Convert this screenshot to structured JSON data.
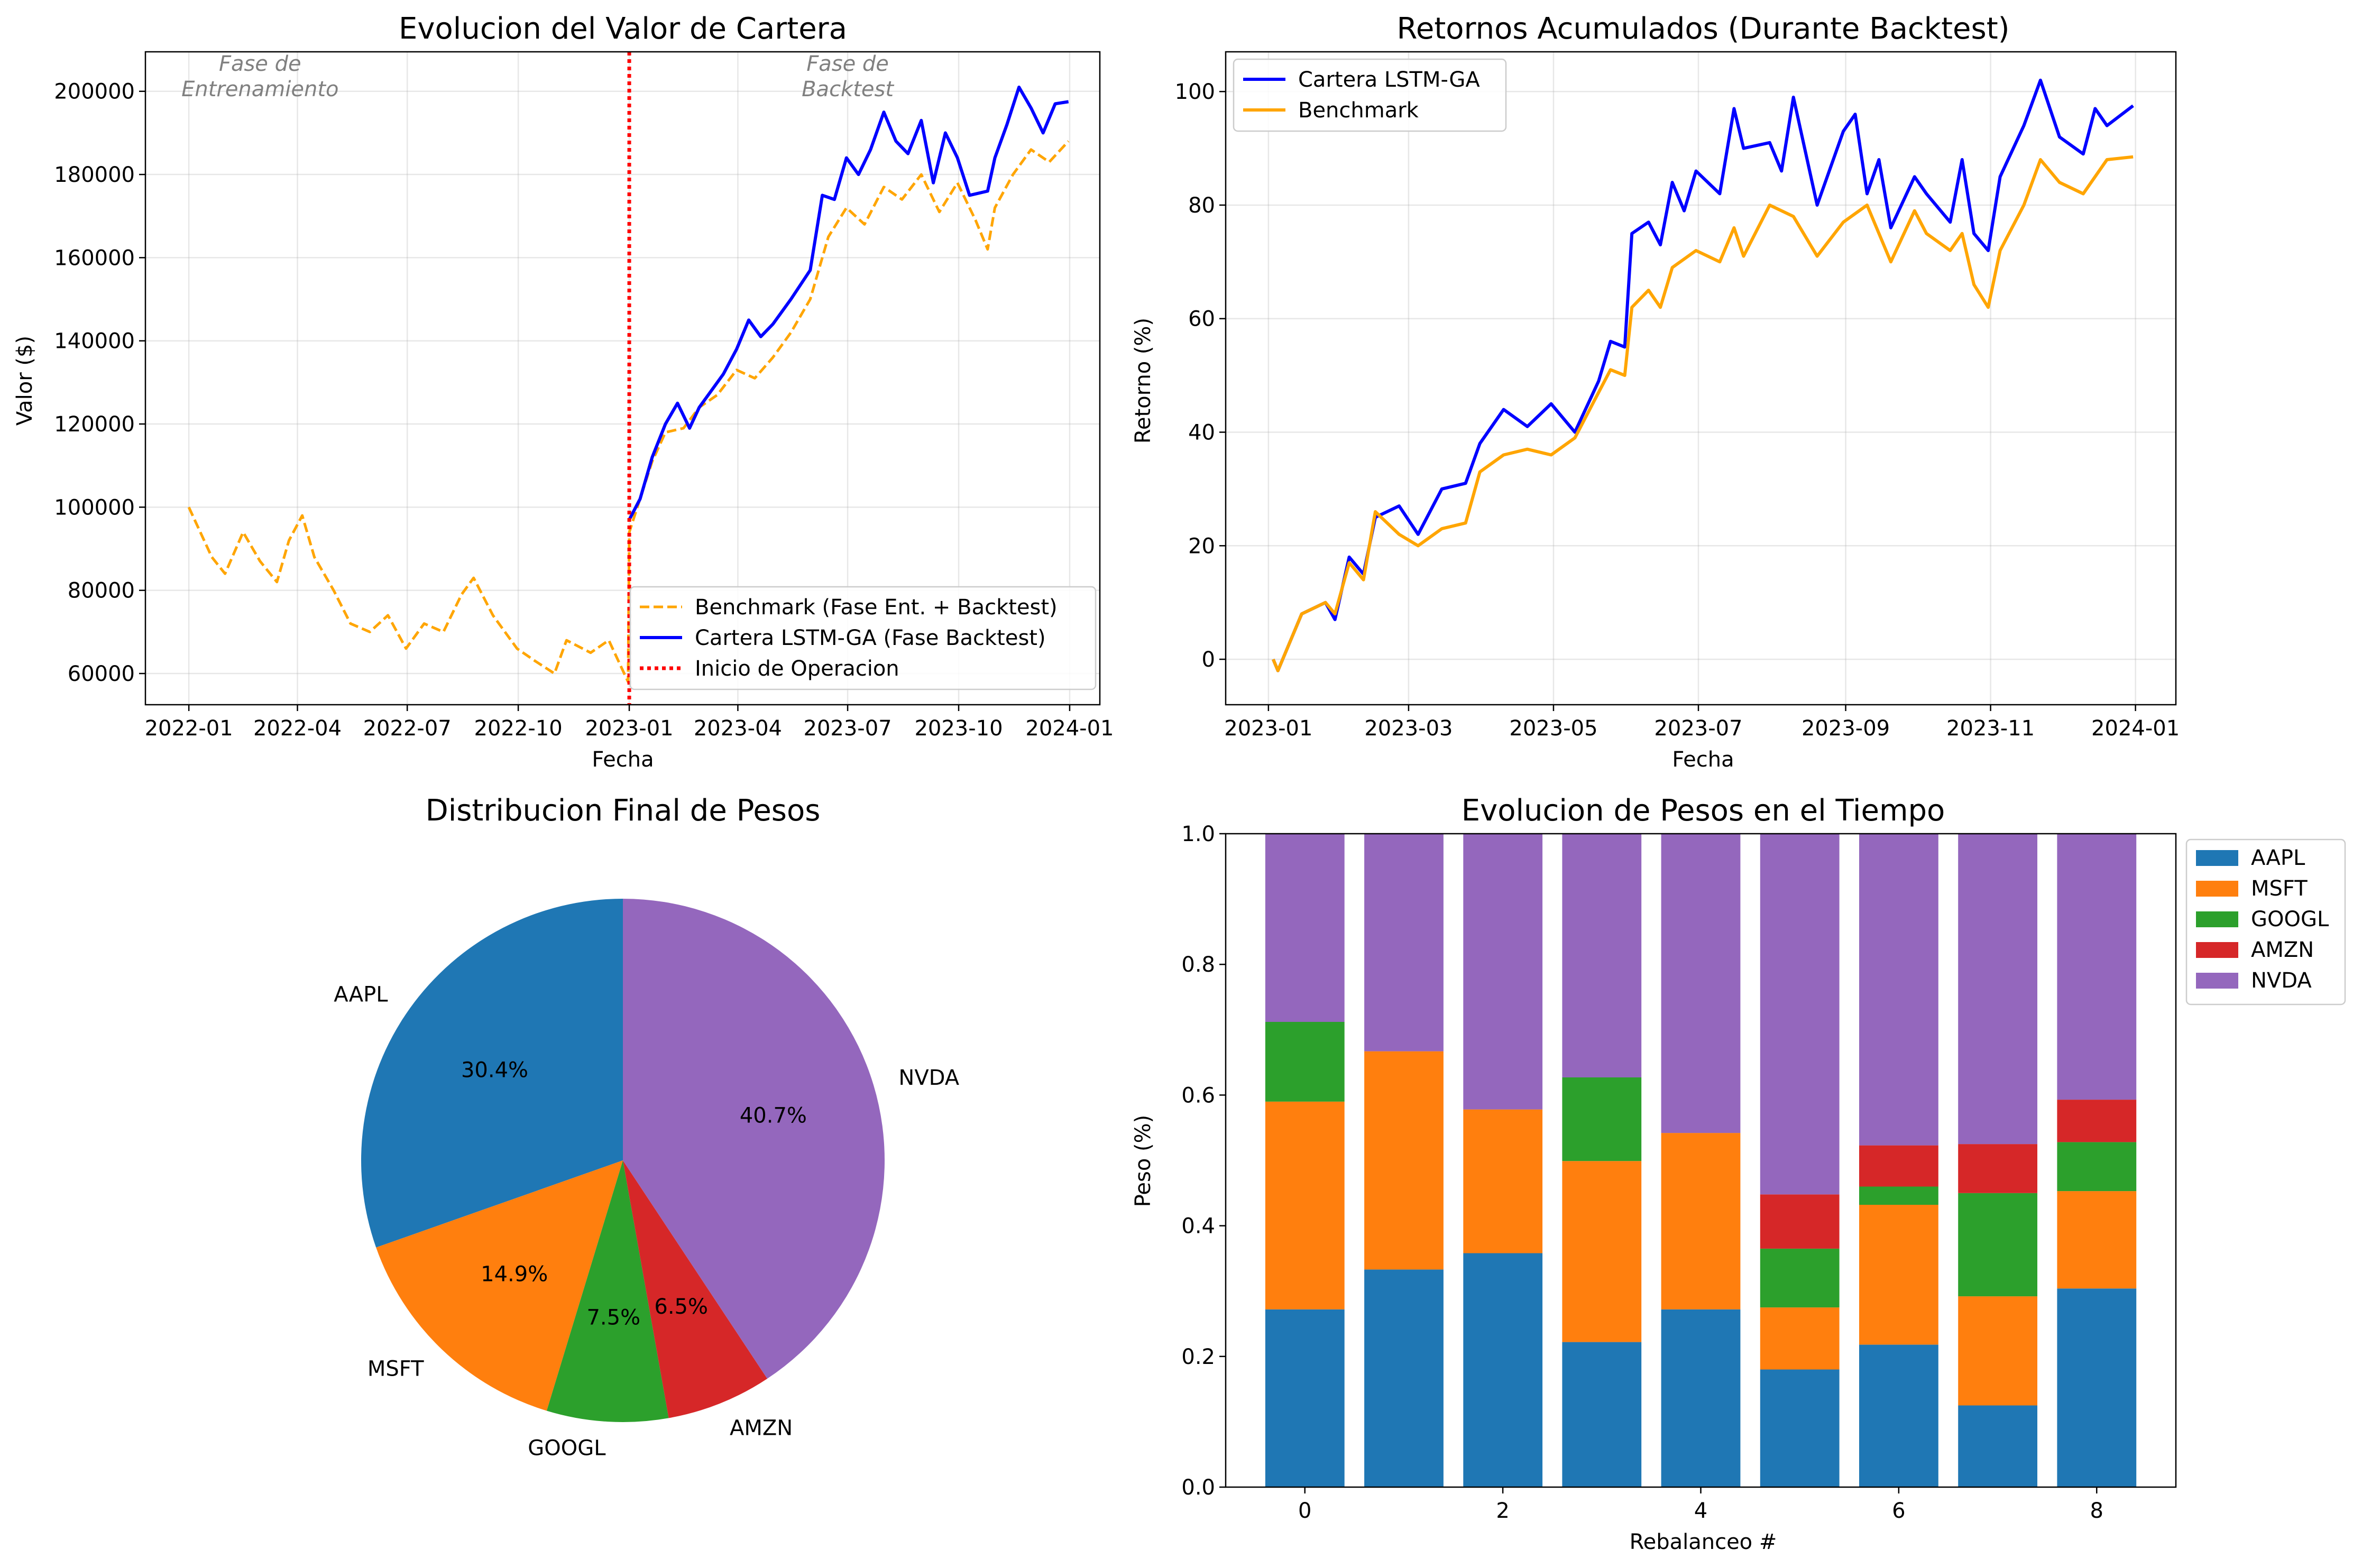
{
  "chart_data": [
    {
      "type": "line",
      "title": "Evolucion del Valor de Cartera",
      "xlabel": "Fecha",
      "ylabel": "Valor ($)",
      "xlim": [
        "2021-11-26",
        "2024-01-26"
      ],
      "ylim": [
        52500,
        209500
      ],
      "xticks": [
        "2022-01",
        "2022-04",
        "2022-07",
        "2022-10",
        "2023-01",
        "2023-04",
        "2023-07",
        "2023-10",
        "2024-01"
      ],
      "yticks": [
        60000,
        80000,
        100000,
        120000,
        140000,
        160000,
        180000,
        200000
      ],
      "grid": true,
      "legend": "bottom-right",
      "annotations": [
        {
          "text": "Fase de\nEntrenamiento",
          "x": "2022-03-01",
          "y": 200000
        },
        {
          "text": "Fase de\nBacktest",
          "x": "2023-07-01",
          "y": 200000
        }
      ],
      "vline": {
        "name": "Inicio de Operacion",
        "x": "2023-01-01",
        "color": "#ff0000",
        "style": "dotted"
      },
      "series": [
        {
          "name": "Benchmark (Fase Ent. + Backtest)",
          "color": "#ffa500",
          "style": "dashed",
          "points": [
            [
              "2022-01-01",
              100000
            ],
            [
              "2022-01-20",
              88000
            ],
            [
              "2022-01-31",
              84000
            ],
            [
              "2022-02-15",
              94000
            ],
            [
              "2022-03-01",
              87000
            ],
            [
              "2022-03-15",
              82000
            ],
            [
              "2022-03-25",
              92000
            ],
            [
              "2022-04-05",
              98000
            ],
            [
              "2022-04-15",
              88000
            ],
            [
              "2022-05-01",
              80000
            ],
            [
              "2022-05-15",
              72000
            ],
            [
              "2022-05-31",
              70000
            ],
            [
              "2022-06-15",
              74000
            ],
            [
              "2022-06-30",
              66000
            ],
            [
              "2022-07-15",
              72000
            ],
            [
              "2022-07-31",
              70000
            ],
            [
              "2022-08-15",
              79000
            ],
            [
              "2022-08-25",
              83000
            ],
            [
              "2022-09-10",
              74000
            ],
            [
              "2022-09-30",
              66000
            ],
            [
              "2022-10-15",
              63000
            ],
            [
              "2022-10-31",
              60000
            ],
            [
              "2022-11-10",
              68000
            ],
            [
              "2022-11-30",
              65000
            ],
            [
              "2022-12-15",
              68000
            ],
            [
              "2022-12-31",
              58000
            ],
            [
              "2023-01-01",
              94000
            ],
            [
              "2023-01-20",
              111000
            ],
            [
              "2023-01-31",
              118000
            ],
            [
              "2023-02-15",
              119000
            ],
            [
              "2023-02-28",
              124000
            ],
            [
              "2023-03-15",
              127000
            ],
            [
              "2023-03-31",
              133000
            ],
            [
              "2023-04-15",
              131000
            ],
            [
              "2023-04-30",
              136000
            ],
            [
              "2023-05-15",
              142000
            ],
            [
              "2023-05-31",
              150000
            ],
            [
              "2023-06-15",
              165000
            ],
            [
              "2023-06-30",
              172000
            ],
            [
              "2023-07-15",
              168000
            ],
            [
              "2023-07-31",
              177000
            ],
            [
              "2023-08-15",
              174000
            ],
            [
              "2023-08-31",
              180000
            ],
            [
              "2023-09-15",
              171000
            ],
            [
              "2023-09-30",
              178000
            ],
            [
              "2023-10-15",
              169000
            ],
            [
              "2023-10-25",
              162000
            ],
            [
              "2023-10-31",
              172000
            ],
            [
              "2023-11-15",
              180000
            ],
            [
              "2023-11-30",
              186000
            ],
            [
              "2023-12-15",
              183000
            ],
            [
              "2023-12-31",
              188000
            ]
          ]
        },
        {
          "name": "Cartera LSTM-GA (Fase Backtest)",
          "color": "#0000ff",
          "style": "solid",
          "points": [
            [
              "2023-01-01",
              97000
            ],
            [
              "2023-01-10",
              102000
            ],
            [
              "2023-01-20",
              112000
            ],
            [
              "2023-01-31",
              120000
            ],
            [
              "2023-02-10",
              125000
            ],
            [
              "2023-02-20",
              119000
            ],
            [
              "2023-02-28",
              124000
            ],
            [
              "2023-03-10",
              128000
            ],
            [
              "2023-03-20",
              132000
            ],
            [
              "2023-03-31",
              138000
            ],
            [
              "2023-04-10",
              145000
            ],
            [
              "2023-04-20",
              141000
            ],
            [
              "2023-04-30",
              144000
            ],
            [
              "2023-05-15",
              150000
            ],
            [
              "2023-05-31",
              157000
            ],
            [
              "2023-06-10",
              175000
            ],
            [
              "2023-06-20",
              174000
            ],
            [
              "2023-06-30",
              184000
            ],
            [
              "2023-07-10",
              180000
            ],
            [
              "2023-07-20",
              186000
            ],
            [
              "2023-07-31",
              195000
            ],
            [
              "2023-08-10",
              188000
            ],
            [
              "2023-08-20",
              185000
            ],
            [
              "2023-08-31",
              193000
            ],
            [
              "2023-09-10",
              178000
            ],
            [
              "2023-09-20",
              190000
            ],
            [
              "2023-09-30",
              184000
            ],
            [
              "2023-10-10",
              175000
            ],
            [
              "2023-10-25",
              176000
            ],
            [
              "2023-10-31",
              184000
            ],
            [
              "2023-11-10",
              192000
            ],
            [
              "2023-11-20",
              201000
            ],
            [
              "2023-11-30",
              196000
            ],
            [
              "2023-12-10",
              190000
            ],
            [
              "2023-12-20",
              197000
            ],
            [
              "2023-12-31",
              197500
            ]
          ]
        }
      ]
    },
    {
      "type": "line",
      "title": "Retornos Acumulados (Durante Backtest)",
      "xlabel": "Fecha",
      "ylabel": "Retorno (%)",
      "xlim": [
        "2022-12-14",
        "2024-01-18"
      ],
      "ylim": [
        -8,
        107
      ],
      "xticks": [
        "2023-01",
        "2023-03",
        "2023-05",
        "2023-07",
        "2023-09",
        "2023-11",
        "2024-01"
      ],
      "yticks": [
        0,
        20,
        40,
        60,
        80,
        100
      ],
      "grid": true,
      "legend": "top-left",
      "series": [
        {
          "name": "Cartera LSTM-GA",
          "color": "#0000ff",
          "points": [
            [
              "2023-01-03",
              0
            ],
            [
              "2023-01-05",
              -2
            ],
            [
              "2023-01-10",
              3
            ],
            [
              "2023-01-15",
              8
            ],
            [
              "2023-01-25",
              10
            ],
            [
              "2023-01-29",
              7
            ],
            [
              "2023-02-04",
              18
            ],
            [
              "2023-02-10",
              15
            ],
            [
              "2023-02-15",
              25
            ],
            [
              "2023-02-25",
              27
            ],
            [
              "2023-03-05",
              22
            ],
            [
              "2023-03-15",
              30
            ],
            [
              "2023-03-25",
              31
            ],
            [
              "2023-03-31",
              38
            ],
            [
              "2023-04-10",
              44
            ],
            [
              "2023-04-20",
              41
            ],
            [
              "2023-04-30",
              45
            ],
            [
              "2023-05-10",
              40
            ],
            [
              "2023-05-20",
              49
            ],
            [
              "2023-05-25",
              56
            ],
            [
              "2023-05-31",
              55
            ],
            [
              "2023-06-03",
              75
            ],
            [
              "2023-06-10",
              77
            ],
            [
              "2023-06-15",
              73
            ],
            [
              "2023-06-20",
              84
            ],
            [
              "2023-06-25",
              79
            ],
            [
              "2023-06-30",
              86
            ],
            [
              "2023-07-10",
              82
            ],
            [
              "2023-07-16",
              97
            ],
            [
              "2023-07-20",
              90
            ],
            [
              "2023-07-31",
              91
            ],
            [
              "2023-08-05",
              86
            ],
            [
              "2023-08-10",
              99
            ],
            [
              "2023-08-20",
              80
            ],
            [
              "2023-08-31",
              93
            ],
            [
              "2023-09-05",
              96
            ],
            [
              "2023-09-10",
              82
            ],
            [
              "2023-09-15",
              88
            ],
            [
              "2023-09-20",
              76
            ],
            [
              "2023-09-30",
              85
            ],
            [
              "2023-10-05",
              82
            ],
            [
              "2023-10-15",
              77
            ],
            [
              "2023-10-20",
              88
            ],
            [
              "2023-10-25",
              75
            ],
            [
              "2023-10-31",
              72
            ],
            [
              "2023-11-05",
              85
            ],
            [
              "2023-11-15",
              94
            ],
            [
              "2023-11-22",
              102
            ],
            [
              "2023-11-30",
              92
            ],
            [
              "2023-12-10",
              89
            ],
            [
              "2023-12-15",
              97
            ],
            [
              "2023-12-20",
              94
            ],
            [
              "2023-12-31",
              97.5
            ]
          ]
        },
        {
          "name": "Benchmark",
          "color": "#ffa500",
          "points": [
            [
              "2023-01-03",
              0
            ],
            [
              "2023-01-05",
              -2
            ],
            [
              "2023-01-10",
              3
            ],
            [
              "2023-01-15",
              8
            ],
            [
              "2023-01-25",
              10
            ],
            [
              "2023-01-29",
              8
            ],
            [
              "2023-02-04",
              17
            ],
            [
              "2023-02-10",
              14
            ],
            [
              "2023-02-15",
              26
            ],
            [
              "2023-02-25",
              22
            ],
            [
              "2023-03-05",
              20
            ],
            [
              "2023-03-15",
              23
            ],
            [
              "2023-03-25",
              24
            ],
            [
              "2023-03-31",
              33
            ],
            [
              "2023-04-10",
              36
            ],
            [
              "2023-04-20",
              37
            ],
            [
              "2023-04-30",
              36
            ],
            [
              "2023-05-10",
              39
            ],
            [
              "2023-05-20",
              47
            ],
            [
              "2023-05-25",
              51
            ],
            [
              "2023-05-31",
              50
            ],
            [
              "2023-06-03",
              62
            ],
            [
              "2023-06-10",
              65
            ],
            [
              "2023-06-15",
              62
            ],
            [
              "2023-06-20",
              69
            ],
            [
              "2023-06-30",
              72
            ],
            [
              "2023-07-10",
              70
            ],
            [
              "2023-07-16",
              76
            ],
            [
              "2023-07-20",
              71
            ],
            [
              "2023-07-31",
              80
            ],
            [
              "2023-08-10",
              78
            ],
            [
              "2023-08-20",
              71
            ],
            [
              "2023-08-31",
              77
            ],
            [
              "2023-09-10",
              80
            ],
            [
              "2023-09-20",
              70
            ],
            [
              "2023-09-30",
              79
            ],
            [
              "2023-10-05",
              75
            ],
            [
              "2023-10-15",
              72
            ],
            [
              "2023-10-20",
              75
            ],
            [
              "2023-10-25",
              66
            ],
            [
              "2023-10-31",
              62
            ],
            [
              "2023-11-05",
              72
            ],
            [
              "2023-11-15",
              80
            ],
            [
              "2023-11-22",
              88
            ],
            [
              "2023-11-30",
              84
            ],
            [
              "2023-12-10",
              82
            ],
            [
              "2023-12-20",
              88
            ],
            [
              "2023-12-31",
              88.5
            ]
          ]
        }
      ]
    },
    {
      "type": "pie",
      "title": "Distribucion Final de Pesos",
      "labels": [
        "AAPL",
        "MSFT",
        "GOOGL",
        "AMZN",
        "NVDA"
      ],
      "values": [
        30.4,
        14.9,
        7.5,
        6.5,
        40.7
      ],
      "percent_labels": [
        "30.4%",
        "14.9%",
        "7.5%",
        "6.5%",
        "40.7%"
      ],
      "colors": [
        "#1f77b4",
        "#ff7f0e",
        "#2ca02c",
        "#d62728",
        "#9467bd"
      ],
      "start_angle_deg": 90
    },
    {
      "type": "bar",
      "stacked": true,
      "title": "Evolucion de Pesos en el Tiempo",
      "xlabel": "Rebalanceo #",
      "ylabel": "Peso (%)",
      "ylim": [
        0,
        1.0
      ],
      "xlim": [
        -0.8,
        8.8
      ],
      "xticks": [
        0,
        2,
        4,
        6,
        8
      ],
      "yticks": [
        0.0,
        0.2,
        0.4,
        0.6,
        0.8,
        1.0
      ],
      "ytick_labels": [
        "0.0",
        "0.2",
        "0.4",
        "0.6",
        "0.8",
        "1.0"
      ],
      "legend": "outside-right",
      "categories": [
        0,
        1,
        2,
        3,
        4,
        5,
        6,
        7,
        8
      ],
      "series": [
        {
          "name": "AAPL",
          "color": "#1f77b4",
          "values": [
            0.272,
            0.333,
            0.358,
            0.222,
            0.272,
            0.18,
            0.218,
            0.125,
            0.304
          ]
        },
        {
          "name": "MSFT",
          "color": "#ff7f0e",
          "values": [
            0.318,
            0.334,
            0.22,
            0.277,
            0.27,
            0.095,
            0.214,
            0.167,
            0.149
          ]
        },
        {
          "name": "GOOGL",
          "color": "#2ca02c",
          "values": [
            0.122,
            0.0,
            0.0,
            0.128,
            0.0,
            0.09,
            0.028,
            0.158,
            0.075
          ]
        },
        {
          "name": "AMZN",
          "color": "#d62728",
          "values": [
            0.0,
            0.0,
            0.0,
            0.0,
            0.0,
            0.083,
            0.063,
            0.075,
            0.065
          ]
        },
        {
          "name": "NVDA",
          "color": "#9467bd",
          "values": [
            0.288,
            0.333,
            0.422,
            0.373,
            0.458,
            0.552,
            0.477,
            0.475,
            0.407
          ]
        }
      ]
    }
  ]
}
